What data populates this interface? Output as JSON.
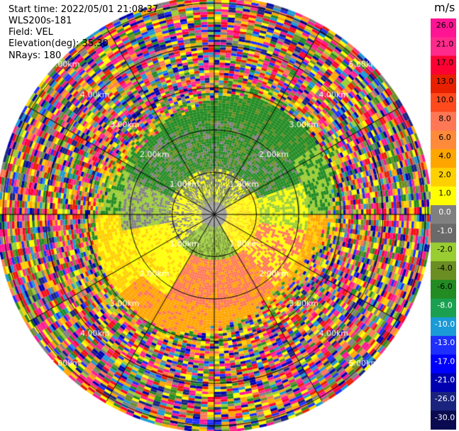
{
  "header": {
    "start_time": "Start time: 2022/05/01 21:08:37",
    "instrument": "WLS200s-181",
    "field": "Field: VEL",
    "elevation": "Elevation(deg): 35.30",
    "nrays": "NRays: 180"
  },
  "range_rings": {
    "unit": "km",
    "labels": [
      "1.00km",
      "2.00km",
      "3.00km",
      "4.00km",
      "5.00km"
    ],
    "values": [
      1,
      2,
      3,
      4,
      5
    ]
  },
  "colorbar": {
    "unit": "m/s",
    "ticks": [
      "26.0",
      "21.0",
      "17.0",
      "13.0",
      "10.0",
      "8.0",
      "6.0",
      "4.0",
      "2.0",
      "1.0",
      "0.0",
      "-1.0",
      "-2.0",
      "-4.0",
      "-6.0",
      "-8.0",
      "-10.0",
      "-13.0",
      "-17.0",
      "-21.0",
      "-26.0",
      "-30.0"
    ],
    "colors": [
      "#ff1493",
      "#ff2a8c",
      "#ff0033",
      "#e82000",
      "#ff4a1e",
      "#ff7755",
      "#ff8a3a",
      "#ffa500",
      "#ffd000",
      "#ffff00",
      "#808080",
      "#6a6a6a",
      "#9acd32",
      "#6b8e23",
      "#228b22",
      "#1aa050",
      "#1a9ad6",
      "#1e2fff",
      "#0000ff",
      "#0000b0",
      "#1a237e",
      "#0a0a50"
    ]
  },
  "legend_extra": {
    "top_label": "m/s",
    "bottom_label": "-30.0"
  }
}
